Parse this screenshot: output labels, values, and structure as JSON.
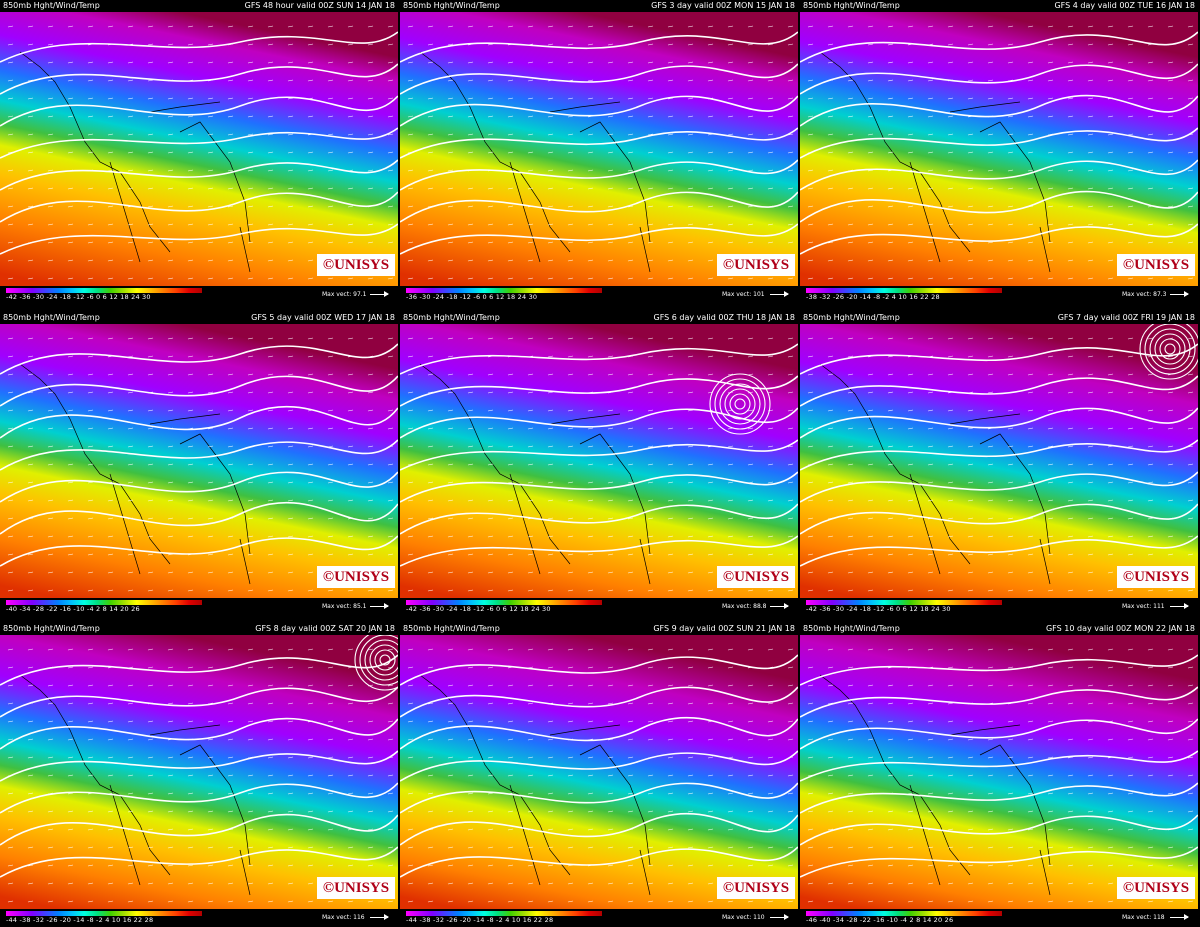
{
  "panels": [
    {
      "title_left": "850mb Hght/Wind/Temp",
      "title_right": "GFS 48 hour valid 00Z SUN 14 JAN 18",
      "ticks": "-42 -36 -30 -24 -18 -12 -6 0 6 12 18 24 30",
      "max_vector": "Max vect: 97.1",
      "logo": "©UNISYS"
    },
    {
      "title_left": "850mb Hght/Wind/Temp",
      "title_right": "GFS 3 day valid 00Z MON 15 JAN 18",
      "ticks": "-36 -30 -24 -18 -12 -6 0 6 12 18 24 30",
      "max_vector": "Max vect: 101",
      "logo": "©UNISYS"
    },
    {
      "title_left": "850mb Hght/Wind/Temp",
      "title_right": "GFS 4 day valid 00Z TUE 16 JAN 18",
      "ticks": "-38 -32 -26 -20 -14 -8 -2 4 10 16 22 28",
      "max_vector": "Max vect: 87.3",
      "logo": "©UNISYS"
    },
    {
      "title_left": "850mb Hght/Wind/Temp",
      "title_right": "GFS 5 day valid 00Z WED 17 JAN 18",
      "ticks": "-40 -34 -28 -22 -16 -10 -4 2 8 14 20 26",
      "max_vector": "Max vect: 85.1",
      "logo": "©UNISYS"
    },
    {
      "title_left": "850mb Hght/Wind/Temp",
      "title_right": "GFS 6 day valid 00Z THU 18 JAN 18",
      "ticks": "-42 -36 -30 -24 -18 -12 -6 0 6 12 18 24 30",
      "max_vector": "Max vect: 88.8",
      "logo": "©UNISYS"
    },
    {
      "title_left": "850mb Hght/Wind/Temp",
      "title_right": "GFS 7 day valid 00Z FRI 19 JAN 18",
      "ticks": "-42 -36 -30 -24 -18 -12 -6 0 6 12 18 24 30",
      "max_vector": "Max vect: 111",
      "logo": "©UNISYS"
    },
    {
      "title_left": "850mb Hght/Wind/Temp",
      "title_right": "GFS 8 day valid 00Z SAT 20 JAN 18",
      "ticks": "-44 -38 -32 -26 -20 -14 -8 -2 4 10 16 22 28",
      "max_vector": "Max vect: 116",
      "logo": "©UNISYS"
    },
    {
      "title_left": "850mb Hght/Wind/Temp",
      "title_right": "GFS 9 day valid 00Z SUN 21 JAN 18",
      "ticks": "-44 -38 -32 -26 -20 -14 -8 -2 4 10 16 22 28",
      "max_vector": "Max vect: 110",
      "logo": "©UNISYS"
    },
    {
      "title_left": "850mb Hght/Wind/Temp",
      "title_right": "GFS 10 day valid 00Z MON 22 JAN 18",
      "ticks": "-46 -40 -34 -28 -22 -16 -10 -4 2 8 14 20 26",
      "max_vector": "Max vect: 118",
      "logo": "©UNISYS"
    }
  ],
  "colors": {
    "background": "#000000",
    "contour": "#ffffff",
    "logo_red": "#b00018",
    "scale": [
      "#ff00ff",
      "#c000ff",
      "#8000ff",
      "#4040ff",
      "#0080ff",
      "#00c0ff",
      "#00ffe0",
      "#00e080",
      "#40d000",
      "#a0e000",
      "#ffff00",
      "#ffc000",
      "#ff8000",
      "#ff4000",
      "#e00000",
      "#b00000"
    ]
  }
}
